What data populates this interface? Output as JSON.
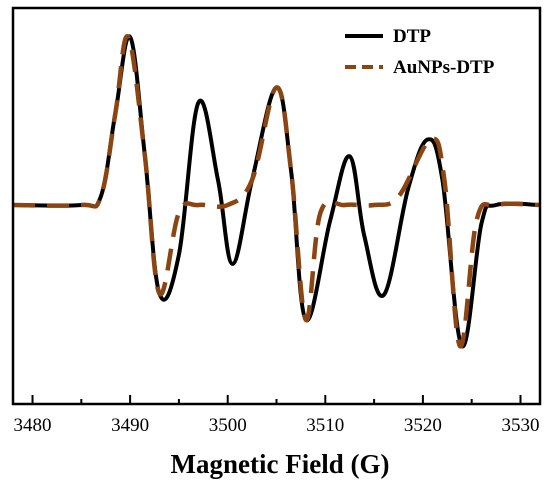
{
  "chart_data": {
    "type": "line",
    "title": "",
    "xlabel": "Magnetic Field (G)",
    "ylabel": "",
    "xlim": [
      3478,
      3532
    ],
    "ylim": [
      -1.0,
      1.0
    ],
    "xticks": [
      3480,
      3490,
      3500,
      3510,
      3520,
      3530
    ],
    "grid": false,
    "legend_position": "top-right",
    "series": [
      {
        "name": "DTP",
        "style": "solid",
        "color": "#000000",
        "x": [
          3478,
          3485,
          3487,
          3488.5,
          3490,
          3491.5,
          3493,
          3495,
          3497,
          3499,
          3500.5,
          3502.5,
          3505,
          3506.5,
          3508,
          3510.5,
          3512.5,
          3514,
          3516,
          3518.5,
          3520.5,
          3522,
          3524,
          3526,
          3527.5,
          3532
        ],
        "y": [
          0,
          0,
          0.05,
          0.55,
          1.0,
          0.3,
          -0.57,
          -0.32,
          0.61,
          0.15,
          -0.38,
          0.15,
          0.7,
          0.2,
          -0.74,
          -0.1,
          0.29,
          -0.2,
          -0.58,
          0.1,
          0.39,
          0.15,
          -0.91,
          -0.12,
          0,
          0
        ]
      },
      {
        "name": "AuNPs-DTP",
        "style": "dashed",
        "color": "#8B4513",
        "x": [
          3478,
          3485,
          3487,
          3488.5,
          3489.8,
          3491.5,
          3493,
          3495,
          3497,
          3500,
          3502.5,
          3505,
          3506.5,
          3508,
          3509.5,
          3512,
          3515,
          3517.5,
          3520.8,
          3522.2,
          3523.8,
          3525.5,
          3527.5,
          3532
        ],
        "y": [
          0,
          0,
          0.05,
          0.55,
          1.0,
          0.3,
          -0.57,
          -0.05,
          0,
          0,
          0.15,
          0.7,
          0.2,
          -0.74,
          -0.05,
          0,
          0,
          0.05,
          0.39,
          0.15,
          -0.91,
          -0.1,
          0,
          0
        ]
      }
    ]
  }
}
